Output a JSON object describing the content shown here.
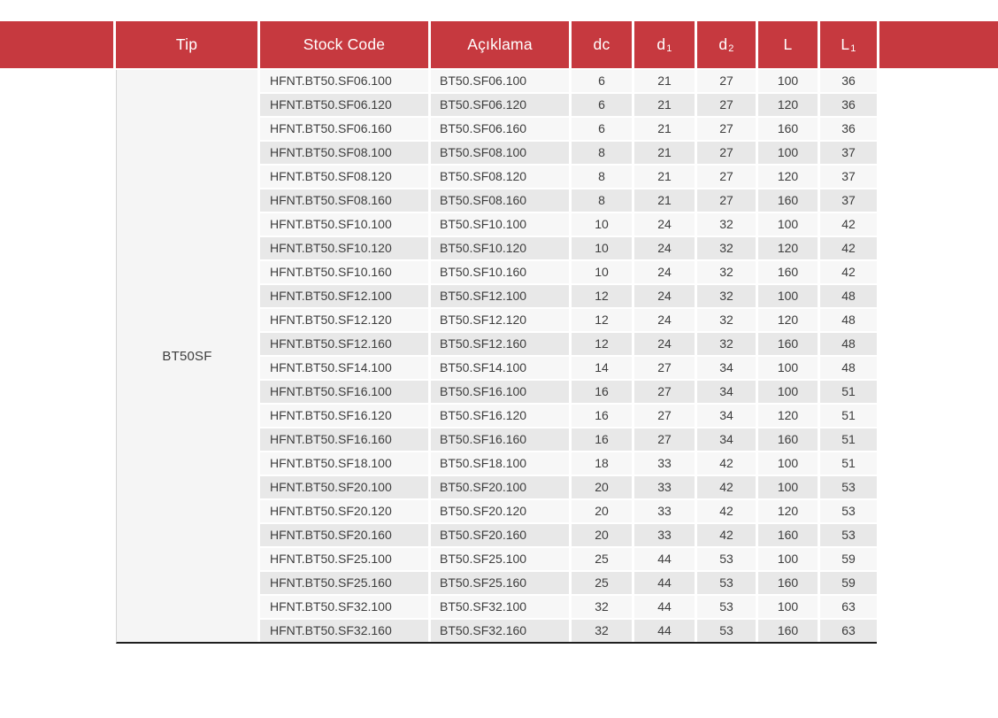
{
  "colors": {
    "header_red": "#c6393f",
    "row_odd": "#f7f7f7",
    "row_even": "#e8e8e8",
    "tip_cell_bg": "#f5f5f5",
    "body_text": "#3d3d3d",
    "header_text": "#ffffff",
    "bottom_border": "#1f1f1f"
  },
  "table": {
    "tip_value": "BT50SF",
    "headers": {
      "tip": "Tip",
      "stock_code": "Stock Code",
      "aciklama": "Açıklama",
      "dc": "dc",
      "d1_base": "d",
      "d1_sub": "1",
      "d2_base": "d",
      "d2_sub": "2",
      "l": "L",
      "l1_base": "L",
      "l1_sub": "1"
    },
    "rows": [
      [
        "HFNT.BT50.SF06.100",
        "BT50.SF06.100",
        "6",
        "21",
        "27",
        "100",
        "36"
      ],
      [
        "HFNT.BT50.SF06.120",
        "BT50.SF06.120",
        "6",
        "21",
        "27",
        "120",
        "36"
      ],
      [
        "HFNT.BT50.SF06.160",
        "BT50.SF06.160",
        "6",
        "21",
        "27",
        "160",
        "36"
      ],
      [
        "HFNT.BT50.SF08.100",
        "BT50.SF08.100",
        "8",
        "21",
        "27",
        "100",
        "37"
      ],
      [
        "HFNT.BT50.SF08.120",
        "BT50.SF08.120",
        "8",
        "21",
        "27",
        "120",
        "37"
      ],
      [
        "HFNT.BT50.SF08.160",
        "BT50.SF08.160",
        "8",
        "21",
        "27",
        "160",
        "37"
      ],
      [
        "HFNT.BT50.SF10.100",
        "BT50.SF10.100",
        "10",
        "24",
        "32",
        "100",
        "42"
      ],
      [
        "HFNT.BT50.SF10.120",
        "BT50.SF10.120",
        "10",
        "24",
        "32",
        "120",
        "42"
      ],
      [
        "HFNT.BT50.SF10.160",
        "BT50.SF10.160",
        "10",
        "24",
        "32",
        "160",
        "42"
      ],
      [
        "HFNT.BT50.SF12.100",
        "BT50.SF12.100",
        "12",
        "24",
        "32",
        "100",
        "48"
      ],
      [
        "HFNT.BT50.SF12.120",
        "BT50.SF12.120",
        "12",
        "24",
        "32",
        "120",
        "48"
      ],
      [
        "HFNT.BT50.SF12.160",
        "BT50.SF12.160",
        "12",
        "24",
        "32",
        "160",
        "48"
      ],
      [
        "HFNT.BT50.SF14.100",
        "BT50.SF14.100",
        "14",
        "27",
        "34",
        "100",
        "48"
      ],
      [
        "HFNT.BT50.SF16.100",
        "BT50.SF16.100",
        "16",
        "27",
        "34",
        "100",
        "51"
      ],
      [
        "HFNT.BT50.SF16.120",
        "BT50.SF16.120",
        "16",
        "27",
        "34",
        "120",
        "51"
      ],
      [
        "HFNT.BT50.SF16.160",
        "BT50.SF16.160",
        "16",
        "27",
        "34",
        "160",
        "51"
      ],
      [
        "HFNT.BT50.SF18.100",
        "BT50.SF18.100",
        "18",
        "33",
        "42",
        "100",
        "51"
      ],
      [
        "HFNT.BT50.SF20.100",
        "BT50.SF20.100",
        "20",
        "33",
        "42",
        "100",
        "53"
      ],
      [
        "HFNT.BT50.SF20.120",
        "BT50.SF20.120",
        "20",
        "33",
        "42",
        "120",
        "53"
      ],
      [
        "HFNT.BT50.SF20.160",
        "BT50.SF20.160",
        "20",
        "33",
        "42",
        "160",
        "53"
      ],
      [
        "HFNT.BT50.SF25.100",
        "BT50.SF25.100",
        "25",
        "44",
        "53",
        "100",
        "59"
      ],
      [
        "HFNT.BT50.SF25.160",
        "BT50.SF25.160",
        "25",
        "44",
        "53",
        "160",
        "59"
      ],
      [
        "HFNT.BT50.SF32.100",
        "BT50.SF32.100",
        "32",
        "44",
        "53",
        "100",
        "63"
      ],
      [
        "HFNT.BT50.SF32.160",
        "BT50.SF32.160",
        "32",
        "44",
        "53",
        "160",
        "63"
      ]
    ]
  }
}
